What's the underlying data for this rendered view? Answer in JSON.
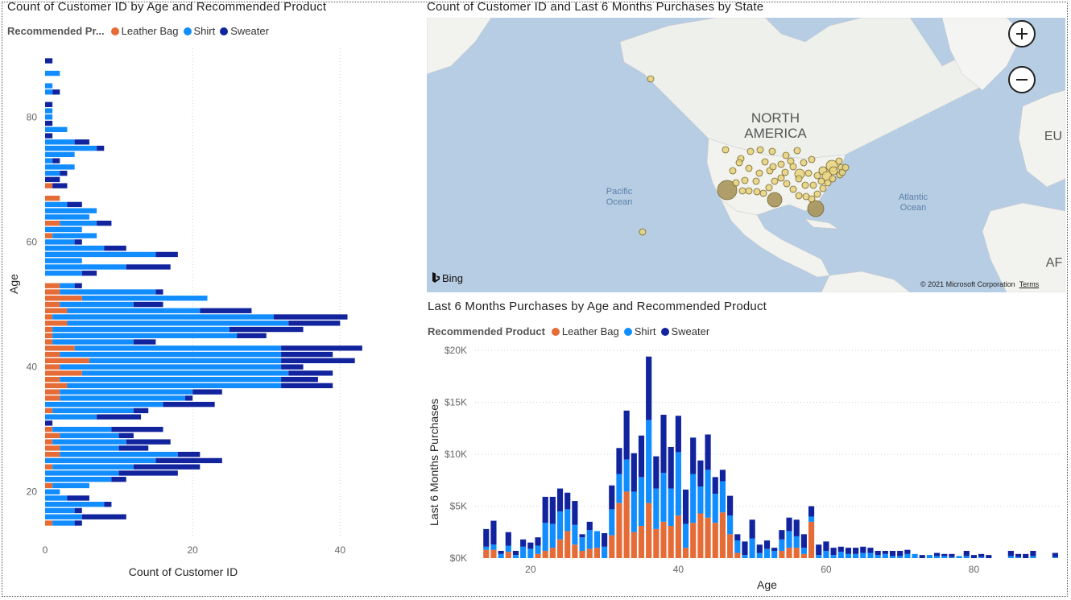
{
  "colors": {
    "leather": "#E66C37",
    "shirt": "#118DFF",
    "sweater": "#12239E",
    "bubble": "#E6D27A",
    "bubble_dark": "#A7955A"
  },
  "chart_data": [
    {
      "id": "age_count",
      "type": "bar",
      "orientation": "horizontal",
      "stacked": true,
      "title": "Count of Customer ID by Age and Recommended Product",
      "legend_title": "Recommended Pr...",
      "xlabel": "Count of Customer ID",
      "ylabel": "Age",
      "xlim": [
        0,
        44
      ],
      "ylim": [
        13,
        91
      ],
      "xticks": [
        0,
        20,
        40
      ],
      "yticks": [
        20,
        40,
        60,
        80
      ],
      "series_names": [
        "Leather Bag",
        "Shirt",
        "Sweater"
      ],
      "ages": [
        15,
        16,
        17,
        18,
        19,
        20,
        21,
        22,
        23,
        24,
        25,
        26,
        27,
        28,
        29,
        30,
        31,
        32,
        33,
        34,
        35,
        36,
        37,
        38,
        39,
        40,
        41,
        42,
        43,
        44,
        45,
        46,
        47,
        48,
        49,
        50,
        51,
        52,
        53,
        54,
        55,
        56,
        57,
        58,
        59,
        60,
        61,
        62,
        63,
        64,
        65,
        66,
        67,
        68,
        69,
        70,
        71,
        72,
        73,
        74,
        75,
        76,
        77,
        78,
        79,
        80,
        81,
        82,
        84,
        85,
        87,
        89
      ],
      "leather": [
        1,
        0,
        0,
        0,
        0,
        0,
        1,
        0,
        0,
        1,
        0,
        2,
        2,
        1,
        2,
        1,
        0,
        0,
        1,
        0,
        2,
        2,
        3,
        2,
        5,
        2,
        6,
        2,
        4,
        1,
        1,
        1,
        3,
        1,
        3,
        2,
        5,
        2,
        2,
        0,
        0,
        0,
        0,
        0,
        0,
        0,
        1,
        0,
        2,
        0,
        0,
        0,
        2,
        0,
        1,
        0,
        0,
        0,
        0,
        0,
        0,
        0,
        0,
        0,
        0,
        0,
        0,
        0,
        0,
        0,
        0,
        0
      ],
      "shirt": [
        3,
        5,
        4,
        8,
        3,
        2,
        5,
        9,
        10,
        11,
        15,
        16,
        8,
        10,
        8,
        8,
        0,
        7,
        11,
        16,
        17,
        18,
        29,
        30,
        28,
        30,
        26,
        30,
        28,
        11,
        25,
        24,
        30,
        30,
        18,
        10,
        17,
        13,
        2,
        0,
        5,
        11,
        5,
        15,
        8,
        4,
        6,
        5,
        5,
        6,
        7,
        3,
        0,
        0,
        0,
        0,
        2,
        4,
        1,
        4,
        7,
        4,
        0,
        3,
        0,
        1,
        1,
        0,
        1,
        1,
        2,
        0
      ],
      "sweater": [
        1,
        6,
        1,
        1,
        3,
        0,
        0,
        2,
        8,
        9,
        9,
        3,
        4,
        6,
        2,
        7,
        1,
        6,
        2,
        7,
        1,
        4,
        7,
        5,
        6,
        3,
        10,
        7,
        11,
        3,
        4,
        10,
        7,
        10,
        7,
        4,
        0,
        1,
        1,
        0,
        2,
        6,
        0,
        3,
        3,
        1,
        0,
        0,
        2,
        0,
        0,
        2,
        0,
        0,
        2,
        2,
        1,
        0,
        1,
        0,
        1,
        2,
        1,
        0,
        1,
        0,
        0,
        1,
        1,
        0,
        0,
        1
      ]
    },
    {
      "id": "purchases_by_age",
      "type": "bar",
      "orientation": "vertical",
      "stacked": true,
      "title": "Last 6 Months Purchases by Age and Recommended Product",
      "legend_title": "Recommended Product",
      "xlabel": "Age",
      "ylabel": "Last 6 Months Purchases",
      "ylim": [
        0,
        20000
      ],
      "xlim": [
        12.5,
        91.5
      ],
      "yticks": [
        "$0K",
        "$5K",
        "$10K",
        "$15K",
        "$20K"
      ],
      "ytick_values": [
        0,
        5000,
        10000,
        15000,
        20000
      ],
      "xticks": [
        20,
        40,
        60,
        80
      ],
      "series_names": [
        "Leather Bag",
        "Shirt",
        "Sweater"
      ],
      "ages": [
        14,
        15,
        16,
        17,
        18,
        19,
        20,
        21,
        22,
        23,
        24,
        25,
        26,
        27,
        28,
        29,
        30,
        31,
        32,
        33,
        34,
        35,
        36,
        37,
        38,
        39,
        40,
        41,
        42,
        43,
        44,
        45,
        46,
        47,
        48,
        49,
        50,
        51,
        52,
        53,
        54,
        55,
        56,
        57,
        58,
        59,
        60,
        61,
        62,
        63,
        64,
        65,
        66,
        67,
        68,
        69,
        70,
        71,
        72,
        73,
        74,
        75,
        76,
        77,
        78,
        79,
        80,
        81,
        82,
        85,
        86,
        87,
        88,
        91
      ],
      "leather": [
        800,
        800,
        0,
        600,
        0,
        0,
        0,
        400,
        700,
        1000,
        1800,
        2600,
        1300,
        700,
        900,
        1000,
        0,
        2200,
        5300,
        6400,
        2500,
        3100,
        5300,
        2800,
        3500,
        3100,
        4100,
        1000,
        3400,
        4300,
        3900,
        3400,
        4400,
        2300,
        500,
        0,
        0,
        0,
        0,
        0,
        700,
        1000,
        1000,
        400,
        3500,
        0,
        0,
        0,
        0,
        0,
        0,
        0,
        0,
        0,
        0,
        0,
        0,
        0,
        0,
        0,
        0,
        0,
        0,
        0,
        0,
        0,
        0,
        0,
        0,
        0,
        0,
        0,
        0,
        0
      ],
      "shirt": [
        300,
        500,
        400,
        600,
        300,
        1100,
        900,
        800,
        2700,
        2300,
        2700,
        2100,
        1900,
        1300,
        1800,
        1600,
        1100,
        2500,
        2800,
        3100,
        3900,
        4700,
        8000,
        3900,
        4700,
        3600,
        6100,
        2300,
        4700,
        2600,
        4600,
        2800,
        3000,
        1800,
        1200,
        300,
        1900,
        500,
        900,
        700,
        1100,
        1600,
        1100,
        600,
        500,
        300,
        700,
        300,
        600,
        400,
        400,
        500,
        500,
        300,
        400,
        200,
        200,
        400,
        400,
        0,
        300,
        200,
        200,
        100,
        200,
        200,
        0,
        100,
        0,
        200,
        100,
        0,
        200,
        100
      ],
      "sweater": [
        1700,
        2300,
        300,
        1300,
        400,
        700,
        600,
        800,
        2500,
        2600,
        2200,
        1600,
        2300,
        300,
        800,
        0,
        1300,
        2300,
        2500,
        4700,
        3700,
        4000,
        6100,
        3100,
        5600,
        4000,
        3500,
        3300,
        3500,
        2500,
        3400,
        1600,
        1100,
        1900,
        600,
        1300,
        1800,
        800,
        800,
        300,
        900,
        1300,
        1600,
        1300,
        1000,
        1000,
        900,
        700,
        500,
        600,
        600,
        600,
        500,
        400,
        300,
        500,
        500,
        400,
        0,
        300,
        0,
        300,
        200,
        300,
        0,
        500,
        300,
        300,
        300,
        500,
        300,
        400,
        500,
        400
      ]
    },
    {
      "id": "state_map",
      "type": "scatter",
      "title": "Count of Customer ID and Last 6 Months Purchases by State",
      "map_labels": [
        "NORTH",
        "AMERICA",
        "Pacific",
        "Ocean",
        "Atlantic",
        "Ocean",
        "EU",
        "AF"
      ],
      "bubble_count": 60
    }
  ],
  "map": {
    "zoom_in": "+",
    "zoom_out": "−",
    "bing": "Bing",
    "copyright": "© 2021 Microsoft Corporation",
    "terms": "Terms"
  }
}
